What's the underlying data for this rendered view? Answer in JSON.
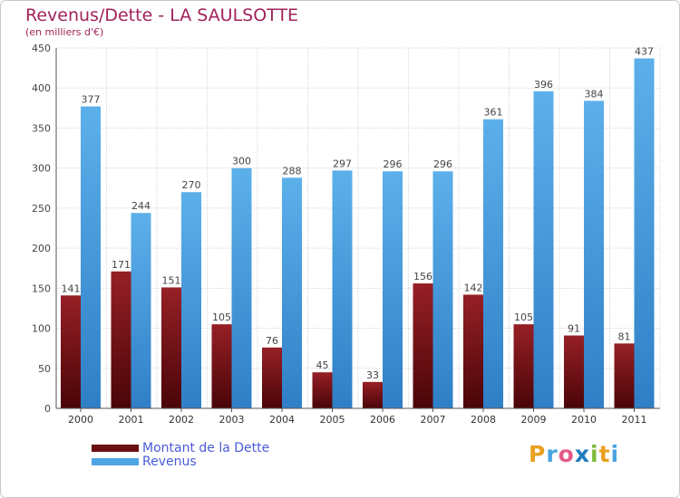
{
  "title": "Revenus/Dette - LA SAULSOTTE",
  "subtitle": "(en milliers d'€)",
  "chart_data": {
    "type": "bar",
    "title": "Revenus/Dette - LA SAULSOTTE",
    "subtitle": "(en milliers d'€)",
    "categories": [
      "2000",
      "2001",
      "2002",
      "2003",
      "2004",
      "2005",
      "2006",
      "2007",
      "2008",
      "2009",
      "2010",
      "2011"
    ],
    "series": [
      {
        "name": "Montant de la Dette",
        "color": "#7a1a1c",
        "values": [
          141,
          171,
          151,
          105,
          76,
          45,
          33,
          156,
          142,
          105,
          91,
          81
        ]
      },
      {
        "name": "Revenus",
        "color": "#4ea3e4",
        "values": [
          377,
          244,
          270,
          300,
          288,
          297,
          296,
          296,
          361,
          396,
          384,
          437
        ]
      }
    ],
    "ylim": [
      0,
      450
    ],
    "yticks": [
      0,
      50,
      100,
      150,
      200,
      250,
      300,
      350,
      400,
      450
    ],
    "grid": true,
    "legend_position": "bottom-left",
    "data_labels": true
  },
  "legend": {
    "items": [
      {
        "label": "Montant de la Dette",
        "color": "#6b0f12"
      },
      {
        "label": "Revenus",
        "color": "#4ea3e4"
      }
    ]
  },
  "logo": {
    "letters": [
      "P",
      "r",
      "o",
      "x",
      "i",
      "t",
      "i"
    ],
    "colors": [
      "#e8a020",
      "#4aa3df",
      "#e25a8a",
      "#1f7bbf",
      "#7dbb3c",
      "#e8a020",
      "#4aa3df"
    ]
  }
}
